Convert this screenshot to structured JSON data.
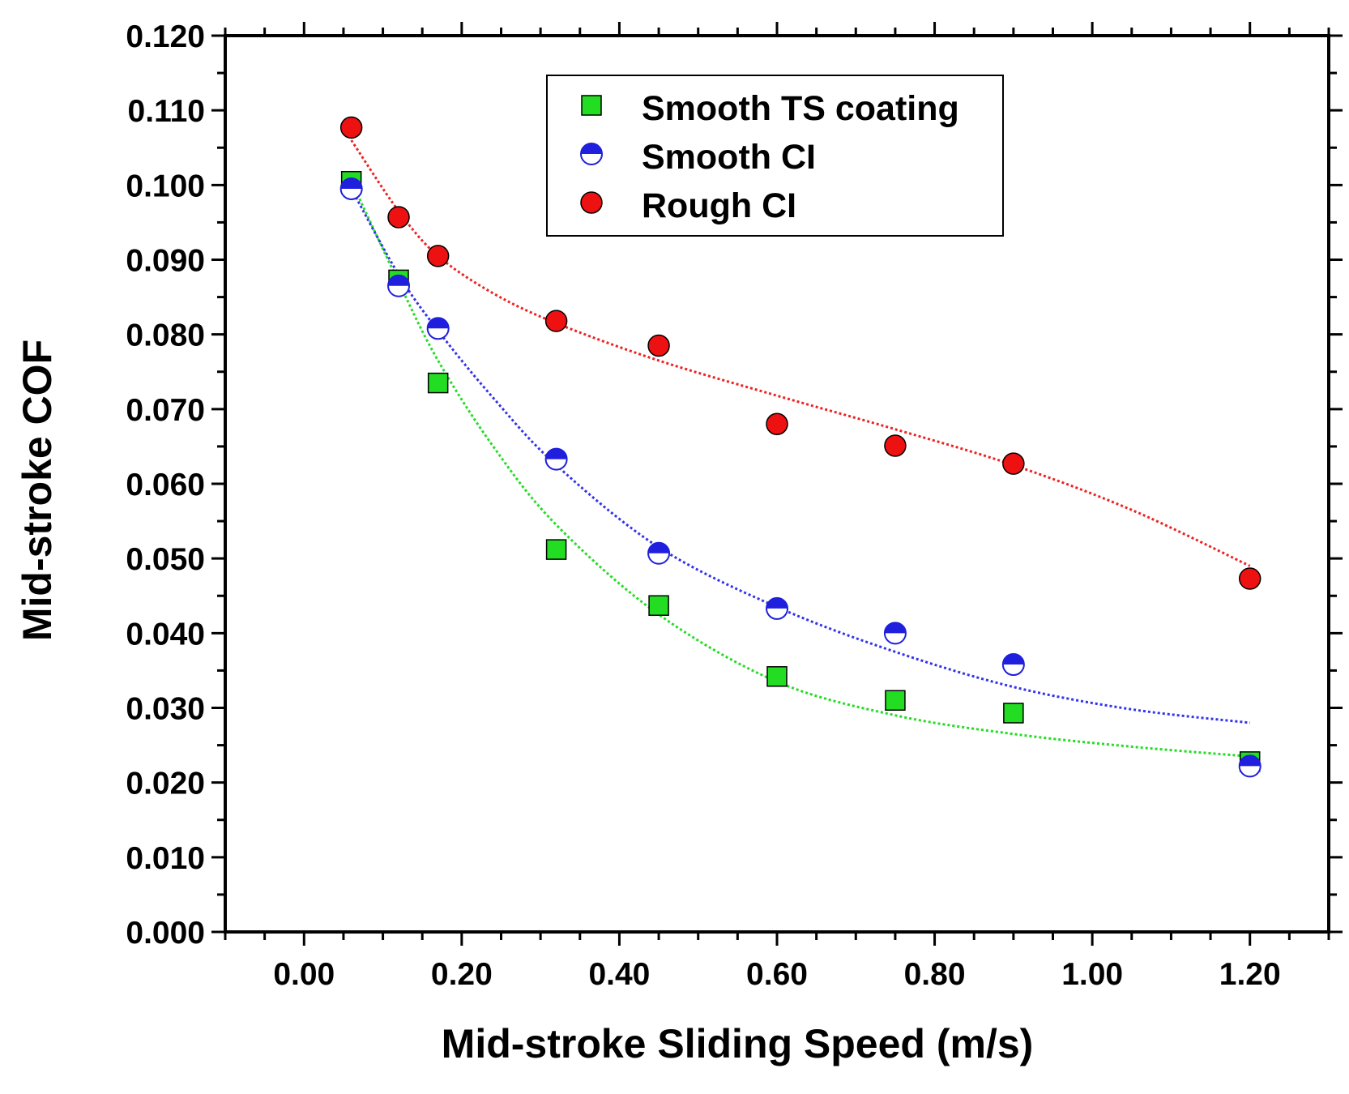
{
  "chart_data": {
    "type": "scatter",
    "title": "",
    "xlabel": "Mid-stroke Sliding Speed (m/s)",
    "ylabel": "Mid-stroke COF",
    "xlim": [
      -0.1,
      1.3
    ],
    "ylim": [
      0.0,
      0.12
    ],
    "x_ticks": [
      "0.00",
      "0.20",
      "0.40",
      "0.60",
      "0.80",
      "1.00",
      "1.20"
    ],
    "y_ticks": [
      "0.000",
      "0.010",
      "0.020",
      "0.030",
      "0.040",
      "0.050",
      "0.060",
      "0.070",
      "0.080",
      "0.090",
      "0.100",
      "0.110",
      "0.120"
    ],
    "grid": false,
    "legend_position": "top-center",
    "series": [
      {
        "name": "Smooth TS coating",
        "marker": "square",
        "color": "#22dd22",
        "trend_color": "#22dd22",
        "x": [
          0.06,
          0.12,
          0.17,
          0.32,
          0.45,
          0.6,
          0.75,
          0.9,
          1.2
        ],
        "y": [
          0.1005,
          0.0873,
          0.0735,
          0.0512,
          0.0437,
          0.0342,
          0.031,
          0.0293,
          0.0228
        ],
        "trend": [
          [
            0.06,
            0.1005
          ],
          [
            0.12,
            0.087
          ],
          [
            0.17,
            0.0765
          ],
          [
            0.24,
            0.065
          ],
          [
            0.32,
            0.0545
          ],
          [
            0.45,
            0.0425
          ],
          [
            0.6,
            0.0335
          ],
          [
            0.75,
            0.029
          ],
          [
            0.9,
            0.0265
          ],
          [
            1.05,
            0.0248
          ],
          [
            1.2,
            0.0235
          ]
        ]
      },
      {
        "name": "Smooth CI",
        "marker": "half-circle",
        "color": "#1f1fdd",
        "trend_color": "#3333ee",
        "x": [
          0.06,
          0.12,
          0.17,
          0.32,
          0.45,
          0.6,
          0.75,
          0.9,
          1.2
        ],
        "y": [
          0.0995,
          0.0865,
          0.0808,
          0.0633,
          0.0507,
          0.0433,
          0.04,
          0.0358,
          0.0222
        ],
        "trend": [
          [
            0.06,
            0.0995
          ],
          [
            0.12,
            0.088
          ],
          [
            0.17,
            0.0805
          ],
          [
            0.24,
            0.0715
          ],
          [
            0.32,
            0.0625
          ],
          [
            0.45,
            0.0515
          ],
          [
            0.6,
            0.0435
          ],
          [
            0.75,
            0.0375
          ],
          [
            0.9,
            0.0328
          ],
          [
            1.05,
            0.0298
          ],
          [
            1.2,
            0.028
          ]
        ]
      },
      {
        "name": "Rough CI",
        "marker": "circle",
        "color": "#ee1111",
        "trend_color": "#ee2222",
        "x": [
          0.06,
          0.12,
          0.17,
          0.32,
          0.45,
          0.6,
          0.75,
          0.9,
          1.2
        ],
        "y": [
          0.1077,
          0.0957,
          0.0905,
          0.0818,
          0.0785,
          0.068,
          0.0651,
          0.0627,
          0.0473
        ],
        "trend": [
          [
            0.06,
            0.106
          ],
          [
            0.12,
            0.0965
          ],
          [
            0.17,
            0.0905
          ],
          [
            0.24,
            0.0855
          ],
          [
            0.32,
            0.0815
          ],
          [
            0.45,
            0.0765
          ],
          [
            0.6,
            0.0718
          ],
          [
            0.75,
            0.0673
          ],
          [
            0.9,
            0.0625
          ],
          [
            1.05,
            0.0565
          ],
          [
            1.2,
            0.049
          ]
        ]
      }
    ]
  }
}
